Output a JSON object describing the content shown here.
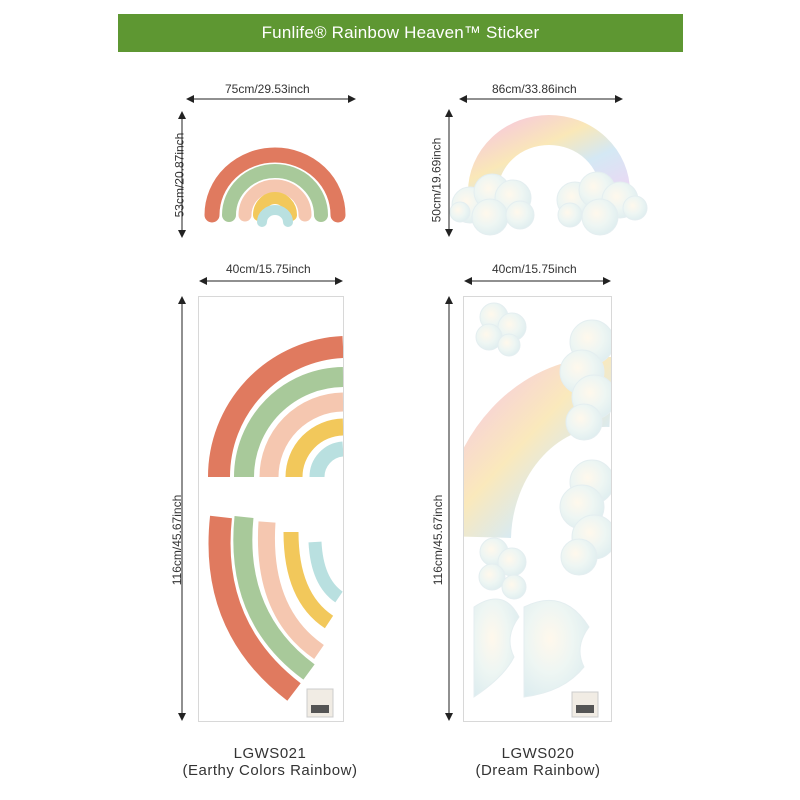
{
  "banner": {
    "title": "Funlife® Rainbow Heaven™ Sticker",
    "color": "#5e9732"
  },
  "left_product": {
    "top_width": "75cm/29.53inch",
    "top_height": "53cm/20.87inch",
    "sheet_width": "40cm/15.75inch",
    "sheet_height": "116cm/45.67inch",
    "code": "LGWS021",
    "name": "(Earthy Colors Rainbow)",
    "colors": [
      "#e07a5f",
      "#a8c99a",
      "#f5c7b0",
      "#f2c85b",
      "#b9e0e0"
    ]
  },
  "right_product": {
    "top_width": "86cm/33.86inch",
    "top_height": "50cm/19.69inch",
    "sheet_width": "40cm/15.75inch",
    "sheet_height": "116cm/45.67inch",
    "code": "LGWS020",
    "name": "(Dream Rainbow)"
  }
}
